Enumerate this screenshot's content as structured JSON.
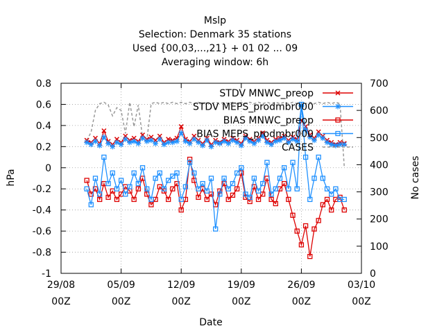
{
  "chart_data": {
    "type": "line",
    "title_lines": [
      "Mslp",
      "Selection: Denmark     35 stations",
      "Used {00,03,...,21} + 01 02 ... 09",
      "Averaging window:  6h"
    ],
    "xlabel": "Date",
    "ylabel": "hPa",
    "y2label": "No cases",
    "xlim": [
      0,
      32
    ],
    "ylim": [
      -1,
      0.8
    ],
    "y2lim": [
      0,
      700
    ],
    "grid": true,
    "legend_position": "top-right",
    "x_ticks": [
      {
        "x": 0,
        "line1": "29/08",
        "line2": "00Z"
      },
      {
        "x": 7,
        "line1": "05/09",
        "line2": "00Z"
      },
      {
        "x": 14,
        "line1": "12/09",
        "line2": "00Z"
      },
      {
        "x": 21,
        "line1": "19/09",
        "line2": "00Z"
      },
      {
        "x": 28,
        "line1": "26/09",
        "line2": "00Z"
      },
      {
        "x": 35,
        "line1": "03/10",
        "line2": "00Z"
      }
    ],
    "y_ticks": [
      "-1",
      "-0.8",
      "-0.6",
      "-0.4",
      "-0.2",
      "0",
      "0.2",
      "0.4",
      "0.6",
      "0.8"
    ],
    "y2_ticks": [
      "0",
      "100",
      "200",
      "300",
      "400",
      "500",
      "600",
      "700"
    ],
    "series": [
      {
        "name": "STDV MNWC_preop",
        "color": "#dd0000",
        "marker": "x",
        "x": [
          3.0,
          3.5,
          4.0,
          4.5,
          5.0,
          5.5,
          6.0,
          6.5,
          7.0,
          7.5,
          8.0,
          8.5,
          9.0,
          9.5,
          10.0,
          10.5,
          11.0,
          11.5,
          12.0,
          12.5,
          13.0,
          13.5,
          14.0,
          14.5,
          15.0,
          15.5,
          16.0,
          16.5,
          17.0,
          17.5,
          18.0,
          18.5,
          19.0,
          19.5,
          20.0,
          20.5,
          21.0,
          21.5,
          22.0,
          22.5,
          23.0,
          23.5,
          24.0,
          24.5,
          25.0,
          25.5,
          26.0,
          26.5,
          27.0,
          27.5,
          28.0,
          28.5,
          29.0,
          29.5,
          30.0,
          30.5,
          31.0,
          31.5,
          32.0,
          32.5,
          33.0
        ],
        "values": [
          0.26,
          0.24,
          0.28,
          0.23,
          0.35,
          0.25,
          0.22,
          0.27,
          0.24,
          0.3,
          0.26,
          0.28,
          0.25,
          0.31,
          0.27,
          0.29,
          0.26,
          0.3,
          0.24,
          0.27,
          0.26,
          0.28,
          0.39,
          0.27,
          0.25,
          0.3,
          0.26,
          0.23,
          0.28,
          0.22,
          0.26,
          0.24,
          0.27,
          0.25,
          0.28,
          0.26,
          0.23,
          0.3,
          0.27,
          0.25,
          0.28,
          0.33,
          0.26,
          0.24,
          0.27,
          0.28,
          0.3,
          0.26,
          0.29,
          0.27,
          0.45,
          0.39,
          0.31,
          0.28,
          0.34,
          0.3,
          0.26,
          0.24,
          0.22,
          0.24,
          0.23
        ]
      },
      {
        "name": "STDV MEPS_prodmbr000",
        "color": "#1e90ff",
        "marker": "star",
        "x": [
          3.0,
          3.5,
          4.0,
          4.5,
          5.0,
          5.5,
          6.0,
          6.5,
          7.0,
          7.5,
          8.0,
          8.5,
          9.0,
          9.5,
          10.0,
          10.5,
          11.0,
          11.5,
          12.0,
          12.5,
          13.0,
          13.5,
          14.0,
          14.5,
          15.0,
          15.5,
          16.0,
          16.5,
          17.0,
          17.5,
          18.0,
          18.5,
          19.0,
          19.5,
          20.0,
          20.5,
          21.0,
          21.5,
          22.0,
          22.5,
          23.0,
          23.5,
          24.0,
          24.5,
          25.0,
          25.5,
          26.0,
          26.5,
          27.0,
          27.5,
          28.0,
          28.5,
          29.0,
          29.5,
          30.0,
          30.5,
          31.0,
          31.5,
          32.0,
          32.5,
          33.0
        ],
        "values": [
          0.24,
          0.22,
          0.25,
          0.21,
          0.29,
          0.23,
          0.2,
          0.24,
          0.22,
          0.27,
          0.24,
          0.25,
          0.23,
          0.28,
          0.25,
          0.26,
          0.23,
          0.27,
          0.22,
          0.24,
          0.24,
          0.25,
          0.33,
          0.25,
          0.23,
          0.27,
          0.24,
          0.21,
          0.26,
          0.2,
          0.24,
          0.23,
          0.25,
          0.23,
          0.26,
          0.24,
          0.21,
          0.28,
          0.25,
          0.23,
          0.26,
          0.3,
          0.24,
          0.22,
          0.25,
          0.26,
          0.28,
          0.24,
          0.27,
          0.25,
          0.59,
          0.36,
          0.29,
          0.26,
          0.31,
          0.28,
          0.24,
          0.22,
          0.21,
          0.22,
          0.22
        ]
      },
      {
        "name": "BIAS MNWC_preop",
        "color": "#dd0000",
        "marker": "square",
        "x": [
          3.0,
          3.5,
          4.0,
          4.5,
          5.0,
          5.5,
          6.0,
          6.5,
          7.0,
          7.5,
          8.0,
          8.5,
          9.0,
          9.5,
          10.0,
          10.5,
          11.0,
          11.5,
          12.0,
          12.5,
          13.0,
          13.5,
          14.0,
          14.5,
          15.0,
          15.5,
          16.0,
          16.5,
          17.0,
          17.5,
          18.0,
          18.5,
          19.0,
          19.5,
          20.0,
          20.5,
          21.0,
          21.5,
          22.0,
          22.5,
          23.0,
          23.5,
          24.0,
          24.5,
          25.0,
          25.5,
          26.0,
          26.5,
          27.0,
          27.5,
          28.0,
          28.5,
          29.0,
          29.5,
          30.0,
          30.5,
          31.0,
          31.5,
          32.0,
          32.5,
          33.0
        ],
        "values": [
          -0.12,
          -0.25,
          -0.2,
          -0.3,
          -0.15,
          -0.28,
          -0.22,
          -0.3,
          -0.25,
          -0.18,
          -0.22,
          -0.3,
          -0.2,
          -0.1,
          -0.25,
          -0.35,
          -0.3,
          -0.18,
          -0.22,
          -0.3,
          -0.2,
          -0.15,
          -0.4,
          -0.3,
          0.08,
          -0.12,
          -0.28,
          -0.2,
          -0.3,
          -0.25,
          -0.35,
          -0.22,
          -0.15,
          -0.3,
          -0.26,
          -0.2,
          -0.05,
          -0.28,
          -0.32,
          -0.18,
          -0.3,
          -0.25,
          -0.1,
          -0.3,
          -0.34,
          -0.2,
          -0.15,
          -0.3,
          -0.45,
          -0.6,
          -0.73,
          -0.55,
          -0.84,
          -0.58,
          -0.5,
          -0.35,
          -0.3,
          -0.4,
          -0.3,
          -0.28,
          -0.4
        ]
      },
      {
        "name": "BIAS MEPS_prodmbr000",
        "color": "#1e90ff",
        "marker": "square",
        "x": [
          3.0,
          3.5,
          4.0,
          4.5,
          5.0,
          5.5,
          6.0,
          6.5,
          7.0,
          7.5,
          8.0,
          8.5,
          9.0,
          9.5,
          10.0,
          10.5,
          11.0,
          11.5,
          12.0,
          12.5,
          13.0,
          13.5,
          14.0,
          14.5,
          15.0,
          15.5,
          16.0,
          16.5,
          17.0,
          17.5,
          18.0,
          18.5,
          19.0,
          19.5,
          20.0,
          20.5,
          21.0,
          21.5,
          22.0,
          22.5,
          23.0,
          23.5,
          24.0,
          24.5,
          25.0,
          25.5,
          26.0,
          26.5,
          27.0,
          27.5,
          28.0,
          28.5,
          29.0,
          29.5,
          30.0,
          30.5,
          31.0,
          31.5,
          32.0,
          32.5,
          33.0
        ],
        "values": [
          -0.2,
          -0.35,
          -0.1,
          -0.25,
          0.1,
          -0.15,
          -0.05,
          -0.2,
          -0.12,
          -0.25,
          -0.18,
          -0.05,
          -0.15,
          0.0,
          -0.2,
          -0.3,
          -0.1,
          -0.05,
          -0.2,
          -0.12,
          -0.08,
          -0.05,
          -0.3,
          -0.18,
          0.05,
          -0.05,
          -0.2,
          -0.15,
          -0.22,
          -0.1,
          -0.58,
          -0.25,
          -0.1,
          -0.2,
          -0.15,
          -0.05,
          0.0,
          -0.25,
          -0.28,
          -0.1,
          -0.22,
          -0.15,
          0.05,
          -0.25,
          -0.2,
          -0.1,
          0.0,
          -0.2,
          0.05,
          -0.2,
          0.6,
          0.1,
          -0.3,
          -0.1,
          0.1,
          -0.1,
          -0.2,
          -0.25,
          -0.2,
          -0.3,
          -0.3
        ]
      },
      {
        "name": "CASES",
        "color": "#999999",
        "marker": "none",
        "dashed": true,
        "axis": "y2",
        "x": [
          3.0,
          3.5,
          4.0,
          4.5,
          5.0,
          5.5,
          6.0,
          6.5,
          7.0,
          7.5,
          8.0,
          8.5,
          9.0,
          9.5,
          10.0,
          10.5,
          11.0,
          11.5,
          12.0,
          12.5,
          13.0,
          13.5,
          14.0,
          14.5,
          15.0,
          15.5,
          16.0,
          16.5,
          17.0,
          17.5,
          18.0,
          18.5,
          19.0,
          19.5,
          20.0,
          20.5,
          21.0,
          21.5,
          22.0,
          22.5,
          23.0,
          23.5,
          24.0,
          24.5,
          25.0,
          25.5,
          26.0,
          26.5,
          27.0,
          27.5,
          28.0,
          28.5,
          29.0,
          29.5,
          30.0,
          30.5,
          31.0,
          31.5,
          32.0,
          32.5,
          33.0
        ],
        "values": [
          490,
          520,
          600,
          625,
          630,
          620,
          580,
          610,
          600,
          515,
          630,
          540,
          620,
          500,
          490,
          625,
          630,
          625,
          630,
          625,
          630,
          625,
          630,
          625,
          630,
          625,
          630,
          625,
          630,
          625,
          630,
          625,
          630,
          625,
          630,
          625,
          630,
          625,
          630,
          625,
          630,
          625,
          630,
          625,
          630,
          625,
          630,
          625,
          630,
          625,
          630,
          625,
          630,
          625,
          630,
          625,
          630,
          625,
          630,
          625,
          390
        ]
      }
    ]
  }
}
